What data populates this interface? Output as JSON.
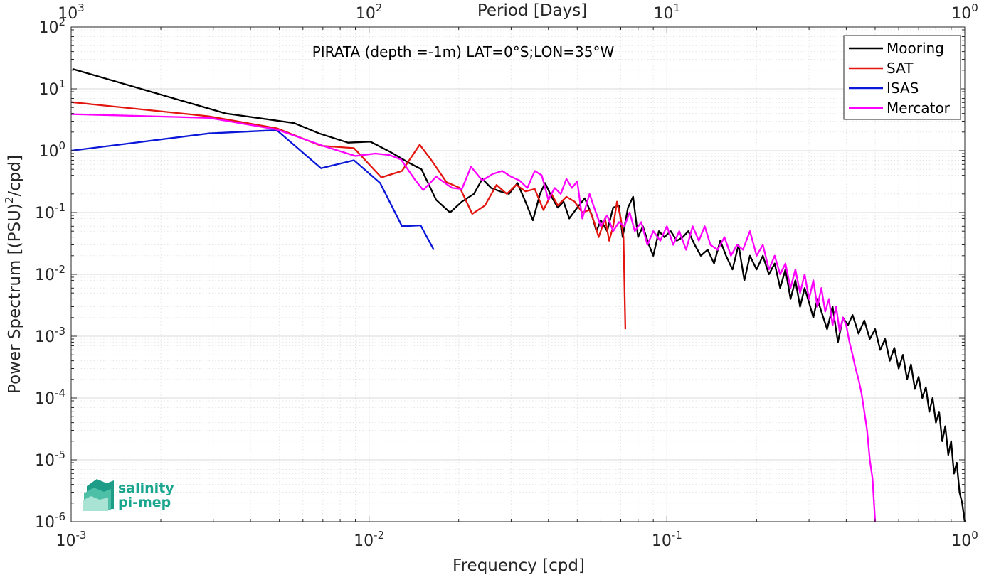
{
  "chart_data": {
    "type": "line",
    "title": "PIRATA (depth =-1m) LAT=0°S;LON=35°W",
    "xlabel": "Frequency [cpd]",
    "ylabel": "Power Spectrum [(PSU)",
    "ylabel_exp": "2",
    "ylabel_suffix": "/cpd]",
    "top_xlabel": "Period [Days]",
    "x_scale": "log",
    "y_scale": "log",
    "xlim": [
      0.001,
      1
    ],
    "ylim": [
      1e-06,
      100
    ],
    "grid": true,
    "legend_position": "top-right",
    "x_ticks": [
      {
        "value": 0.001,
        "base": "10",
        "exp": "-3"
      },
      {
        "value": 0.01,
        "base": "10",
        "exp": "-2"
      },
      {
        "value": 0.1,
        "base": "10",
        "exp": "-1"
      },
      {
        "value": 1,
        "base": "10",
        "exp": "0"
      }
    ],
    "top_ticks": [
      {
        "value": 0.001,
        "base": "10",
        "exp": "3"
      },
      {
        "value": 0.01,
        "base": "10",
        "exp": "2"
      },
      {
        "value": 0.1,
        "base": "10",
        "exp": "1"
      },
      {
        "value": 1,
        "base": "10",
        "exp": "0"
      }
    ],
    "y_ticks": [
      {
        "value": 100,
        "base": "10",
        "exp": "2"
      },
      {
        "value": 10,
        "base": "10",
        "exp": "1"
      },
      {
        "value": 1,
        "base": "10",
        "exp": "0"
      },
      {
        "value": 0.1,
        "base": "10",
        "exp": "-1"
      },
      {
        "value": 0.01,
        "base": "10",
        "exp": "-2"
      },
      {
        "value": 0.001,
        "base": "10",
        "exp": "-3"
      },
      {
        "value": 0.0001,
        "base": "10",
        "exp": "-4"
      },
      {
        "value": 1e-05,
        "base": "10",
        "exp": "-5"
      },
      {
        "value": 1e-06,
        "base": "10",
        "exp": "-6"
      }
    ],
    "series": [
      {
        "name": "Mooring",
        "color": "#000000",
        "points": [
          [
            0.00101,
            21
          ],
          [
            0.0033,
            4.0
          ],
          [
            0.0056,
            2.8
          ],
          [
            0.0068,
            1.9
          ],
          [
            0.0085,
            1.35
          ],
          [
            0.0101,
            1.4
          ],
          [
            0.0118,
            0.95
          ],
          [
            0.0135,
            0.65
          ],
          [
            0.015,
            0.5
          ],
          [
            0.0168,
            0.16
          ],
          [
            0.0187,
            0.1
          ],
          [
            0.0205,
            0.15
          ],
          [
            0.0225,
            0.2
          ],
          [
            0.024,
            0.35
          ],
          [
            0.0257,
            0.25
          ],
          [
            0.0275,
            0.22
          ],
          [
            0.0295,
            0.2
          ],
          [
            0.0315,
            0.3
          ],
          [
            0.0335,
            0.15
          ],
          [
            0.0355,
            0.075
          ],
          [
            0.0375,
            0.2
          ],
          [
            0.039,
            0.3
          ],
          [
            0.041,
            0.18
          ],
          [
            0.043,
            0.12
          ],
          [
            0.045,
            0.15
          ],
          [
            0.047,
            0.08
          ],
          [
            0.05,
            0.12
          ],
          [
            0.053,
            0.17
          ],
          [
            0.056,
            0.09
          ],
          [
            0.058,
            0.05
          ],
          [
            0.06,
            0.075
          ],
          [
            0.063,
            0.05
          ],
          [
            0.066,
            0.12
          ],
          [
            0.069,
            0.13
          ],
          [
            0.071,
            0.04
          ],
          [
            0.074,
            0.12
          ],
          [
            0.077,
            0.18
          ],
          [
            0.08,
            0.04
          ],
          [
            0.083,
            0.06
          ],
          [
            0.087,
            0.03
          ],
          [
            0.09,
            0.02
          ],
          [
            0.094,
            0.05
          ],
          [
            0.098,
            0.04
          ],
          [
            0.103,
            0.05
          ],
          [
            0.108,
            0.035
          ],
          [
            0.113,
            0.04
          ],
          [
            0.118,
            0.05
          ],
          [
            0.124,
            0.03
          ],
          [
            0.13,
            0.02
          ],
          [
            0.137,
            0.025
          ],
          [
            0.144,
            0.015
          ],
          [
            0.151,
            0.035
          ],
          [
            0.158,
            0.02
          ],
          [
            0.166,
            0.012
          ],
          [
            0.174,
            0.03
          ],
          [
            0.182,
            0.008
          ],
          [
            0.19,
            0.02
          ],
          [
            0.2,
            0.012
          ],
          [
            0.21,
            0.02
          ],
          [
            0.22,
            0.01
          ],
          [
            0.23,
            0.015
          ],
          [
            0.24,
            0.006
          ],
          [
            0.25,
            0.012
          ],
          [
            0.26,
            0.004
          ],
          [
            0.27,
            0.008
          ],
          [
            0.28,
            0.003
          ],
          [
            0.29,
            0.006
          ],
          [
            0.3,
            0.0035
          ],
          [
            0.31,
            0.002
          ],
          [
            0.32,
            0.004
          ],
          [
            0.33,
            0.0025
          ],
          [
            0.345,
            0.0013
          ],
          [
            0.36,
            0.003
          ],
          [
            0.375,
            0.0008
          ],
          [
            0.39,
            0.002
          ],
          [
            0.405,
            0.0015
          ],
          [
            0.42,
            0.0022
          ],
          [
            0.44,
            0.0011
          ],
          [
            0.46,
            0.0018
          ],
          [
            0.48,
            0.0009
          ],
          [
            0.5,
            0.0013
          ],
          [
            0.52,
            0.0006
          ],
          [
            0.54,
            0.0009
          ],
          [
            0.56,
            0.0004
          ],
          [
            0.58,
            0.00065
          ],
          [
            0.6,
            0.0003
          ],
          [
            0.62,
            0.0005
          ],
          [
            0.64,
            0.0002
          ],
          [
            0.66,
            0.00035
          ],
          [
            0.68,
            0.00014
          ],
          [
            0.7,
            0.00022
          ],
          [
            0.72,
            0.0001
          ],
          [
            0.74,
            0.00015
          ],
          [
            0.76,
            6e-05
          ],
          [
            0.78,
            0.0001
          ],
          [
            0.8,
            4e-05
          ],
          [
            0.82,
            6e-05
          ],
          [
            0.84,
            2e-05
          ],
          [
            0.86,
            3.5e-05
          ],
          [
            0.88,
            1.2e-05
          ],
          [
            0.9,
            2e-05
          ],
          [
            0.92,
            6e-06
          ],
          [
            0.94,
            9e-06
          ],
          [
            0.96,
            3e-06
          ],
          [
            0.98,
            2e-06
          ],
          [
            1.0,
            1e-06
          ]
        ]
      },
      {
        "name": "SAT",
        "color": "#e3150f",
        "points": [
          [
            0.001,
            6.1
          ],
          [
            0.0029,
            3.6
          ],
          [
            0.0049,
            2.3
          ],
          [
            0.0069,
            1.2
          ],
          [
            0.0089,
            1.1
          ],
          [
            0.011,
            0.37
          ],
          [
            0.0129,
            0.47
          ],
          [
            0.0148,
            1.25
          ],
          [
            0.0162,
            0.7
          ],
          [
            0.0182,
            0.31
          ],
          [
            0.0202,
            0.25
          ],
          [
            0.0222,
            0.095
          ],
          [
            0.0245,
            0.13
          ],
          [
            0.0268,
            0.28
          ],
          [
            0.029,
            0.2
          ],
          [
            0.0312,
            0.28
          ],
          [
            0.0335,
            0.22
          ],
          [
            0.036,
            0.24
          ],
          [
            0.0385,
            0.11
          ],
          [
            0.041,
            0.2
          ],
          [
            0.043,
            0.13
          ],
          [
            0.046,
            0.18
          ],
          [
            0.049,
            0.15
          ],
          [
            0.052,
            0.1
          ],
          [
            0.055,
            0.11
          ],
          [
            0.057,
            0.07
          ],
          [
            0.059,
            0.04
          ],
          [
            0.062,
            0.08
          ],
          [
            0.064,
            0.035
          ],
          [
            0.066,
            0.06
          ],
          [
            0.068,
            0.15
          ],
          [
            0.07,
            0.08
          ],
          [
            0.0715,
            0.04
          ],
          [
            0.0725,
            0.0013
          ]
        ]
      },
      {
        "name": "ISAS",
        "color": "#0a17d8",
        "points": [
          [
            0.001,
            1.0
          ],
          [
            0.0029,
            1.9
          ],
          [
            0.0049,
            2.15
          ],
          [
            0.0069,
            0.52
          ],
          [
            0.0089,
            0.7
          ],
          [
            0.0109,
            0.3
          ],
          [
            0.0129,
            0.06
          ],
          [
            0.0149,
            0.062
          ],
          [
            0.0165,
            0.025
          ]
        ]
      },
      {
        "name": "Mercator",
        "color": "#ff00ff",
        "points": [
          [
            0.001,
            3.9
          ],
          [
            0.0029,
            3.4
          ],
          [
            0.0049,
            2.2
          ],
          [
            0.007,
            1.2
          ],
          [
            0.009,
            0.82
          ],
          [
            0.0105,
            0.9
          ],
          [
            0.0117,
            0.85
          ],
          [
            0.0128,
            0.72
          ],
          [
            0.0142,
            0.35
          ],
          [
            0.0152,
            0.23
          ],
          [
            0.0168,
            0.38
          ],
          [
            0.019,
            0.25
          ],
          [
            0.0205,
            0.24
          ],
          [
            0.022,
            0.55
          ],
          [
            0.024,
            0.33
          ],
          [
            0.026,
            0.42
          ],
          [
            0.028,
            0.47
          ],
          [
            0.03,
            0.38
          ],
          [
            0.032,
            0.33
          ],
          [
            0.034,
            0.25
          ],
          [
            0.036,
            0.47
          ],
          [
            0.038,
            0.4
          ],
          [
            0.04,
            0.16
          ],
          [
            0.042,
            0.25
          ],
          [
            0.044,
            0.2
          ],
          [
            0.046,
            0.35
          ],
          [
            0.048,
            0.25
          ],
          [
            0.05,
            0.32
          ],
          [
            0.052,
            0.08
          ],
          [
            0.055,
            0.2
          ],
          [
            0.057,
            0.12
          ],
          [
            0.06,
            0.06
          ],
          [
            0.063,
            0.09
          ],
          [
            0.066,
            0.05
          ],
          [
            0.069,
            0.07
          ],
          [
            0.072,
            0.06
          ],
          [
            0.075,
            0.1
          ],
          [
            0.078,
            0.05
          ],
          [
            0.082,
            0.07
          ],
          [
            0.086,
            0.03
          ],
          [
            0.09,
            0.05
          ],
          [
            0.095,
            0.035
          ],
          [
            0.1,
            0.06
          ],
          [
            0.105,
            0.03
          ],
          [
            0.11,
            0.05
          ],
          [
            0.116,
            0.025
          ],
          [
            0.122,
            0.06
          ],
          [
            0.128,
            0.035
          ],
          [
            0.134,
            0.06
          ],
          [
            0.14,
            0.03
          ],
          [
            0.148,
            0.025
          ],
          [
            0.156,
            0.04
          ],
          [
            0.164,
            0.02
          ],
          [
            0.172,
            0.03
          ],
          [
            0.18,
            0.025
          ],
          [
            0.19,
            0.05
          ],
          [
            0.2,
            0.02
          ],
          [
            0.21,
            0.03
          ],
          [
            0.22,
            0.012
          ],
          [
            0.23,
            0.02
          ],
          [
            0.24,
            0.01
          ],
          [
            0.25,
            0.015
          ],
          [
            0.26,
            0.006
          ],
          [
            0.27,
            0.012
          ],
          [
            0.28,
            0.005
          ],
          [
            0.29,
            0.01
          ],
          [
            0.3,
            0.004
          ],
          [
            0.31,
            0.008
          ],
          [
            0.32,
            0.003
          ],
          [
            0.33,
            0.006
          ],
          [
            0.34,
            0.0025
          ],
          [
            0.35,
            0.004
          ],
          [
            0.36,
            0.0015
          ],
          [
            0.37,
            0.003
          ],
          [
            0.38,
            0.0012
          ],
          [
            0.39,
            0.002
          ],
          [
            0.4,
            0.0015
          ],
          [
            0.41,
            0.0008
          ],
          [
            0.42,
            0.0005
          ],
          [
            0.43,
            0.0003
          ],
          [
            0.44,
            0.0002
          ],
          [
            0.45,
            0.00012
          ],
          [
            0.46,
            6e-05
          ],
          [
            0.47,
            3e-05
          ],
          [
            0.48,
            1e-05
          ],
          [
            0.49,
            5e-06
          ],
          [
            0.5,
            1e-06
          ]
        ]
      }
    ]
  },
  "logo": {
    "line1": "salinity",
    "line2": "pi-mep"
  }
}
